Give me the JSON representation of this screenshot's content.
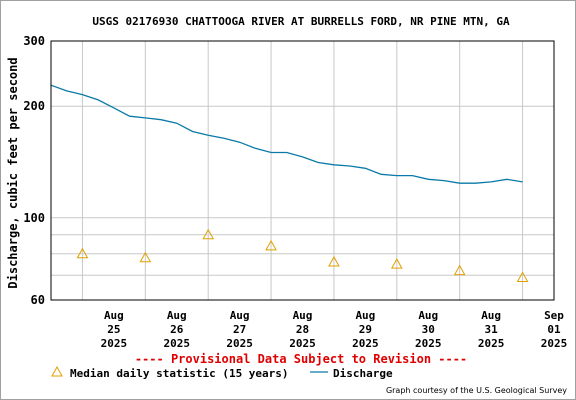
{
  "chart_data": {
    "type": "line",
    "title": "USGS 02176930 CHATTOOGA RIVER AT BURRELLS FORD, NR PINE MTN, GA",
    "ylabel": "Discharge, cubic feet per second",
    "xlabel": "",
    "y_scale": "log",
    "ylim": [
      60,
      300
    ],
    "y_ticks": [
      {
        "value": 300,
        "label": "300"
      },
      {
        "value": 200,
        "label": "200"
      },
      {
        "value": 100,
        "label": "100"
      },
      {
        "value": 60,
        "label": "60"
      }
    ],
    "y_minor_gridlines": [
      70,
      80,
      90
    ],
    "x_ticks": [
      {
        "day": "2025-08-25",
        "lines": [
          "Aug",
          "25",
          "2025"
        ]
      },
      {
        "day": "2025-08-26",
        "lines": [
          "Aug",
          "26",
          "2025"
        ]
      },
      {
        "day": "2025-08-27",
        "lines": [
          "Aug",
          "27",
          "2025"
        ]
      },
      {
        "day": "2025-08-28",
        "lines": [
          "Aug",
          "28",
          "2025"
        ]
      },
      {
        "day": "2025-08-29",
        "lines": [
          "Aug",
          "29",
          "2025"
        ]
      },
      {
        "day": "2025-08-30",
        "lines": [
          "Aug",
          "30",
          "2025"
        ]
      },
      {
        "day": "2025-08-31",
        "lines": [
          "Aug",
          "31",
          "2025"
        ]
      },
      {
        "day": "2025-09-01",
        "lines": [
          "Sep",
          "01",
          "2025"
        ]
      }
    ],
    "xlim": [
      "2025-08-24T12:00",
      "2025-09-01T12:00"
    ],
    "grid": true,
    "series": [
      {
        "name": "Discharge",
        "color": "#0a7aa8",
        "points": [
          [
            "2025-08-24T12:00",
            228
          ],
          [
            "2025-08-24T18:00",
            220
          ],
          [
            "2025-08-25T00:00",
            215
          ],
          [
            "2025-08-25T06:00",
            208
          ],
          [
            "2025-08-25T12:00",
            198
          ],
          [
            "2025-08-25T18:00",
            188
          ],
          [
            "2025-08-26T00:00",
            186
          ],
          [
            "2025-08-26T06:00",
            184
          ],
          [
            "2025-08-26T12:00",
            180
          ],
          [
            "2025-08-26T18:00",
            171
          ],
          [
            "2025-08-27T00:00",
            167
          ],
          [
            "2025-08-27T06:00",
            164
          ],
          [
            "2025-08-27T12:00",
            160
          ],
          [
            "2025-08-27T18:00",
            154
          ],
          [
            "2025-08-28T00:00",
            150
          ],
          [
            "2025-08-28T06:00",
            150
          ],
          [
            "2025-08-28T12:00",
            146
          ],
          [
            "2025-08-28T18:00",
            141
          ],
          [
            "2025-08-29T00:00",
            139
          ],
          [
            "2025-08-29T06:00",
            138
          ],
          [
            "2025-08-29T12:00",
            136
          ],
          [
            "2025-08-29T18:00",
            131
          ],
          [
            "2025-08-30T00:00",
            130
          ],
          [
            "2025-08-30T06:00",
            130
          ],
          [
            "2025-08-30T12:00",
            127
          ],
          [
            "2025-08-30T18:00",
            126
          ],
          [
            "2025-08-31T00:00",
            124
          ],
          [
            "2025-08-31T06:00",
            124
          ],
          [
            "2025-08-31T12:00",
            125
          ],
          [
            "2025-08-31T18:00",
            127
          ],
          [
            "2025-09-01T00:00",
            125
          ]
        ]
      },
      {
        "name": "Median daily statistic (15 years)",
        "marker": "triangle",
        "color": "#e0a000",
        "points": [
          [
            "2025-08-25T00:00",
            80
          ],
          [
            "2025-08-26T00:00",
            78
          ],
          [
            "2025-08-27T00:00",
            90
          ],
          [
            "2025-08-28T00:00",
            84
          ],
          [
            "2025-08-29T00:00",
            76
          ],
          [
            "2025-08-30T00:00",
            75
          ],
          [
            "2025-08-31T00:00",
            72
          ],
          [
            "2025-09-01T00:00",
            69
          ]
        ]
      }
    ],
    "legend_position": "bottom",
    "provisional_note": "---- Provisional Data Subject to Revision ----",
    "credit": "Graph courtesy of the U.S. Geological Survey"
  }
}
